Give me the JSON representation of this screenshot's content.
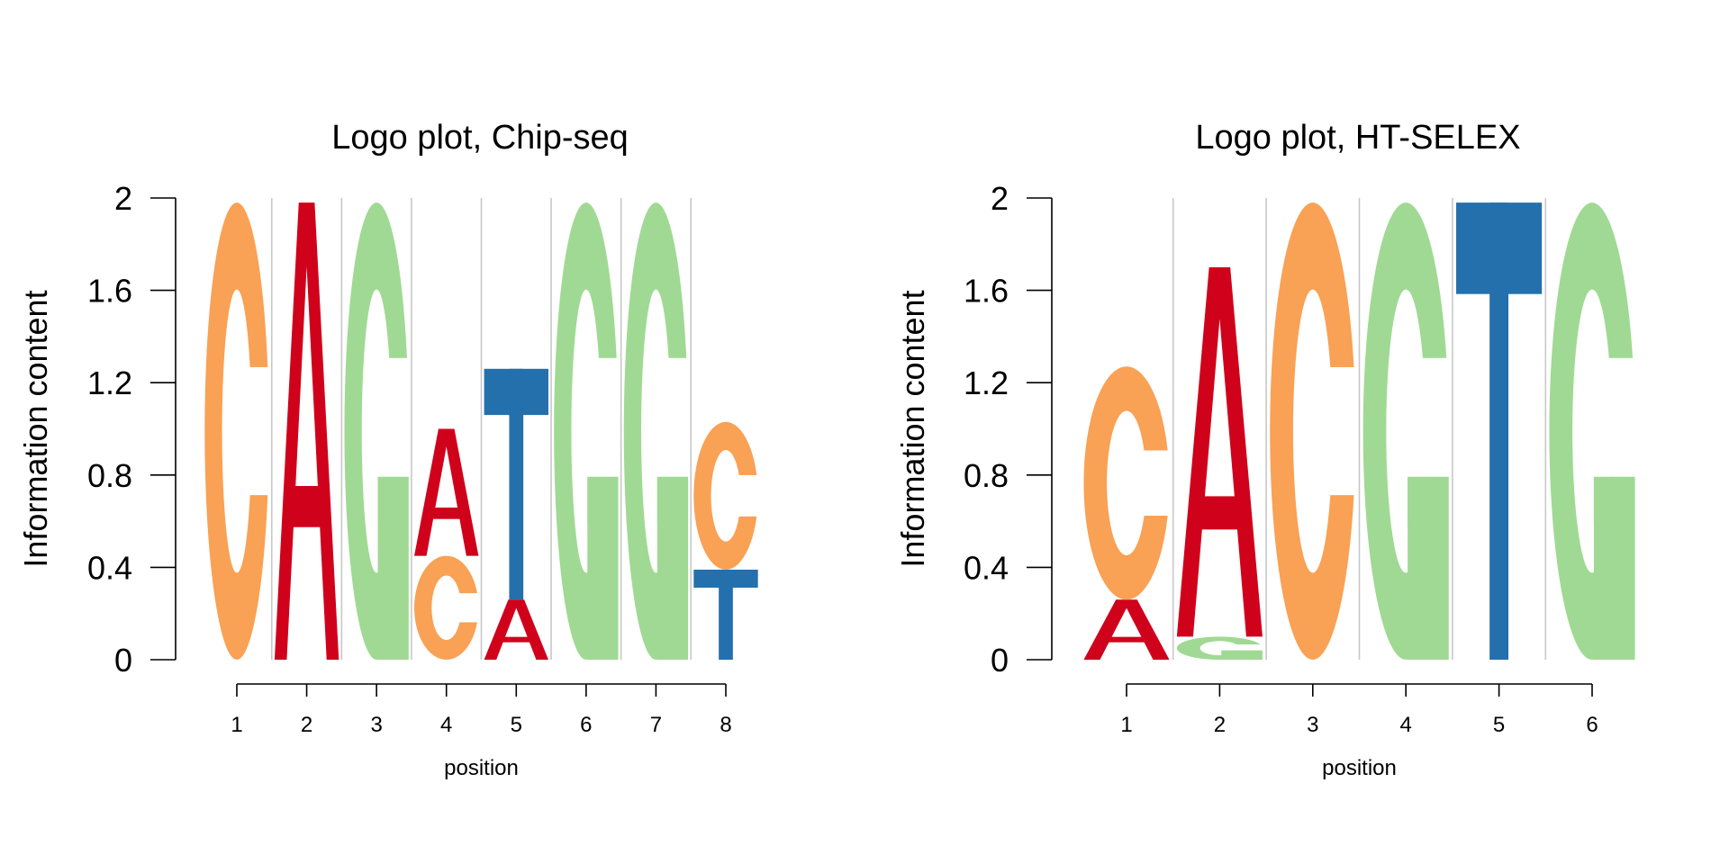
{
  "colors": {
    "A": "#d0021b",
    "C": "#f9a154",
    "G": "#a0d993",
    "T": "#2470ad"
  },
  "chart_data": [
    {
      "type": "logo",
      "title": "Logo plot, Chip-seq",
      "xlabel": "position",
      "ylabel": "Information content",
      "ylim": [
        0,
        2
      ],
      "y_ticks": [
        "0",
        "0.4",
        "0.8",
        "1.2",
        "1.6",
        "2"
      ],
      "positions": [
        "1",
        "2",
        "3",
        "4",
        "5",
        "6",
        "7",
        "8"
      ],
      "grid": true,
      "columns": [
        [
          {
            "letter": "C",
            "height": 1.98
          }
        ],
        [
          {
            "letter": "A",
            "height": 1.98
          }
        ],
        [
          {
            "letter": "G",
            "height": 1.98
          }
        ],
        [
          {
            "letter": "C",
            "height": 0.45
          },
          {
            "letter": "A",
            "height": 0.55
          }
        ],
        [
          {
            "letter": "A",
            "height": 0.26
          },
          {
            "letter": "T",
            "height": 1.0
          }
        ],
        [
          {
            "letter": "G",
            "height": 1.98
          }
        ],
        [
          {
            "letter": "G",
            "height": 1.98
          }
        ],
        [
          {
            "letter": "T",
            "height": 0.39
          },
          {
            "letter": "C",
            "height": 0.64
          }
        ]
      ]
    },
    {
      "type": "logo",
      "title": "Logo plot, HT-SELEX",
      "xlabel": "position",
      "ylabel": "Information content",
      "ylim": [
        0,
        2
      ],
      "y_ticks": [
        "0",
        "0.4",
        "0.8",
        "1.2",
        "1.6",
        "2"
      ],
      "positions": [
        "1",
        "2",
        "3",
        "4",
        "5",
        "6"
      ],
      "grid": true,
      "columns": [
        [
          {
            "letter": "A",
            "height": 0.26
          },
          {
            "letter": "C",
            "height": 1.01
          }
        ],
        [
          {
            "letter": "G",
            "height": 0.1
          },
          {
            "letter": "A",
            "height": 1.6
          }
        ],
        [
          {
            "letter": "C",
            "height": 1.98
          }
        ],
        [
          {
            "letter": "G",
            "height": 1.98
          }
        ],
        [
          {
            "letter": "T",
            "height": 1.98
          }
        ],
        [
          {
            "letter": "G",
            "height": 1.98
          }
        ]
      ]
    }
  ]
}
